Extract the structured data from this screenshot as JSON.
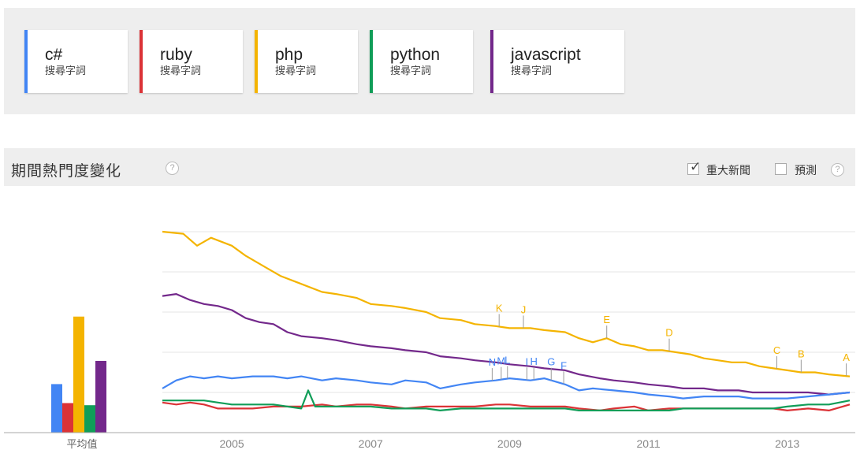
{
  "terms": [
    {
      "name": "c#",
      "type": "搜尋字詞",
      "color": "#4285f4"
    },
    {
      "name": "ruby",
      "type": "搜尋字詞",
      "color": "#db3236"
    },
    {
      "name": "php",
      "type": "搜尋字詞",
      "color": "#f4b400"
    },
    {
      "name": "python",
      "type": "搜尋字詞",
      "color": "#109d58"
    },
    {
      "name": "javascript",
      "type": "搜尋字詞",
      "color": "#73288b"
    }
  ],
  "section": {
    "title": "期間熱門度變化",
    "help": "?",
    "news_label": "重大新聞",
    "news_checked": true,
    "forecast_label": "預測",
    "forecast_checked": false
  },
  "chart_data": {
    "type": "line",
    "x_range": [
      2004.0,
      2013.9
    ],
    "ylim": [
      0,
      100
    ],
    "x_ticks": [
      "2005",
      "2007",
      "2009",
      "2011",
      "2013"
    ],
    "average_label": "平均值",
    "averages": [
      {
        "name": "c#",
        "value": 23
      },
      {
        "name": "ruby",
        "value": 14
      },
      {
        "name": "php",
        "value": 55
      },
      {
        "name": "python",
        "value": 13
      },
      {
        "name": "javascript",
        "value": 34
      }
    ],
    "series": [
      {
        "name": "php",
        "color": "#f4b400",
        "points": [
          [
            2004.0,
            100
          ],
          [
            2004.3,
            99
          ],
          [
            2004.5,
            93
          ],
          [
            2004.7,
            97
          ],
          [
            2005.0,
            93
          ],
          [
            2005.2,
            88
          ],
          [
            2005.5,
            82
          ],
          [
            2005.7,
            78
          ],
          [
            2006.0,
            74
          ],
          [
            2006.3,
            70
          ],
          [
            2006.5,
            69
          ],
          [
            2006.8,
            67
          ],
          [
            2007.0,
            64
          ],
          [
            2007.3,
            63
          ],
          [
            2007.5,
            62
          ],
          [
            2007.8,
            60
          ],
          [
            2008.0,
            57
          ],
          [
            2008.3,
            56
          ],
          [
            2008.5,
            54
          ],
          [
            2008.8,
            53
          ],
          [
            2009.0,
            52
          ],
          [
            2009.3,
            52
          ],
          [
            2009.5,
            51
          ],
          [
            2009.8,
            50
          ],
          [
            2010.0,
            47
          ],
          [
            2010.2,
            45
          ],
          [
            2010.4,
            47
          ],
          [
            2010.6,
            44
          ],
          [
            2010.8,
            43
          ],
          [
            2011.0,
            41
          ],
          [
            2011.2,
            41
          ],
          [
            2011.4,
            40
          ],
          [
            2011.6,
            39
          ],
          [
            2011.8,
            37
          ],
          [
            2012.0,
            36
          ],
          [
            2012.2,
            35
          ],
          [
            2012.4,
            35
          ],
          [
            2012.6,
            33
          ],
          [
            2012.8,
            32
          ],
          [
            2013.0,
            31
          ],
          [
            2013.2,
            30
          ],
          [
            2013.4,
            30
          ],
          [
            2013.6,
            29
          ],
          [
            2013.9,
            28
          ]
        ]
      },
      {
        "name": "javascript",
        "color": "#73288b",
        "points": [
          [
            2004.0,
            68
          ],
          [
            2004.2,
            69
          ],
          [
            2004.4,
            66
          ],
          [
            2004.6,
            64
          ],
          [
            2004.8,
            63
          ],
          [
            2005.0,
            61
          ],
          [
            2005.2,
            57
          ],
          [
            2005.4,
            55
          ],
          [
            2005.6,
            54
          ],
          [
            2005.8,
            50
          ],
          [
            2006.0,
            48
          ],
          [
            2006.3,
            47
          ],
          [
            2006.5,
            46
          ],
          [
            2006.8,
            44
          ],
          [
            2007.0,
            43
          ],
          [
            2007.3,
            42
          ],
          [
            2007.5,
            41
          ],
          [
            2007.8,
            40
          ],
          [
            2008.0,
            38
          ],
          [
            2008.3,
            37
          ],
          [
            2008.5,
            36
          ],
          [
            2008.8,
            35
          ],
          [
            2009.0,
            34
          ],
          [
            2009.3,
            33
          ],
          [
            2009.5,
            32
          ],
          [
            2009.8,
            31
          ],
          [
            2010.0,
            29
          ],
          [
            2010.3,
            27
          ],
          [
            2010.5,
            26
          ],
          [
            2010.8,
            25
          ],
          [
            2011.0,
            24
          ],
          [
            2011.3,
            23
          ],
          [
            2011.5,
            22
          ],
          [
            2011.8,
            22
          ],
          [
            2012.0,
            21
          ],
          [
            2012.3,
            21
          ],
          [
            2012.5,
            20
          ],
          [
            2012.8,
            20
          ],
          [
            2013.0,
            20
          ],
          [
            2013.3,
            20
          ],
          [
            2013.6,
            19
          ],
          [
            2013.9,
            20
          ]
        ]
      },
      {
        "name": "c#",
        "color": "#4285f4",
        "points": [
          [
            2004.0,
            22
          ],
          [
            2004.2,
            26
          ],
          [
            2004.4,
            28
          ],
          [
            2004.6,
            27
          ],
          [
            2004.8,
            28
          ],
          [
            2005.0,
            27
          ],
          [
            2005.3,
            28
          ],
          [
            2005.6,
            28
          ],
          [
            2005.8,
            27
          ],
          [
            2006.0,
            28
          ],
          [
            2006.3,
            26
          ],
          [
            2006.5,
            27
          ],
          [
            2006.8,
            26
          ],
          [
            2007.0,
            25
          ],
          [
            2007.3,
            24
          ],
          [
            2007.5,
            26
          ],
          [
            2007.8,
            25
          ],
          [
            2008.0,
            22
          ],
          [
            2008.3,
            24
          ],
          [
            2008.5,
            25
          ],
          [
            2008.8,
            26
          ],
          [
            2009.0,
            27
          ],
          [
            2009.3,
            26
          ],
          [
            2009.5,
            27
          ],
          [
            2009.8,
            24
          ],
          [
            2010.0,
            21
          ],
          [
            2010.2,
            22
          ],
          [
            2010.5,
            21
          ],
          [
            2010.8,
            20
          ],
          [
            2011.0,
            19
          ],
          [
            2011.3,
            18
          ],
          [
            2011.5,
            17
          ],
          [
            2011.8,
            18
          ],
          [
            2012.0,
            18
          ],
          [
            2012.3,
            18
          ],
          [
            2012.5,
            17
          ],
          [
            2012.8,
            17
          ],
          [
            2013.0,
            17
          ],
          [
            2013.3,
            18
          ],
          [
            2013.6,
            19
          ],
          [
            2013.9,
            20
          ]
        ]
      },
      {
        "name": "ruby",
        "color": "#db3236",
        "points": [
          [
            2004.0,
            15
          ],
          [
            2004.2,
            14
          ],
          [
            2004.4,
            15
          ],
          [
            2004.6,
            14
          ],
          [
            2004.8,
            12
          ],
          [
            2005.0,
            12
          ],
          [
            2005.3,
            12
          ],
          [
            2005.6,
            13
          ],
          [
            2005.8,
            13
          ],
          [
            2006.0,
            13
          ],
          [
            2006.3,
            14
          ],
          [
            2006.5,
            13
          ],
          [
            2006.8,
            14
          ],
          [
            2007.0,
            14
          ],
          [
            2007.3,
            13
          ],
          [
            2007.5,
            12
          ],
          [
            2007.8,
            13
          ],
          [
            2008.0,
            13
          ],
          [
            2008.3,
            13
          ],
          [
            2008.5,
            13
          ],
          [
            2008.8,
            14
          ],
          [
            2009.0,
            14
          ],
          [
            2009.3,
            13
          ],
          [
            2009.5,
            13
          ],
          [
            2009.8,
            13
          ],
          [
            2010.0,
            12
          ],
          [
            2010.3,
            11
          ],
          [
            2010.5,
            12
          ],
          [
            2010.8,
            13
          ],
          [
            2011.0,
            11
          ],
          [
            2011.3,
            12
          ],
          [
            2011.5,
            12
          ],
          [
            2011.8,
            12
          ],
          [
            2012.0,
            12
          ],
          [
            2012.3,
            12
          ],
          [
            2012.5,
            12
          ],
          [
            2012.8,
            12
          ],
          [
            2013.0,
            11
          ],
          [
            2013.3,
            12
          ],
          [
            2013.6,
            11
          ],
          [
            2013.9,
            14
          ]
        ]
      },
      {
        "name": "python",
        "color": "#109d58",
        "points": [
          [
            2004.0,
            16
          ],
          [
            2004.2,
            16
          ],
          [
            2004.4,
            16
          ],
          [
            2004.6,
            16
          ],
          [
            2004.8,
            15
          ],
          [
            2005.0,
            14
          ],
          [
            2005.3,
            14
          ],
          [
            2005.6,
            14
          ],
          [
            2005.8,
            13
          ],
          [
            2006.0,
            12
          ],
          [
            2006.1,
            21
          ],
          [
            2006.2,
            13
          ],
          [
            2006.5,
            13
          ],
          [
            2006.8,
            13
          ],
          [
            2007.0,
            13
          ],
          [
            2007.3,
            12
          ],
          [
            2007.5,
            12
          ],
          [
            2007.8,
            12
          ],
          [
            2008.0,
            11
          ],
          [
            2008.3,
            12
          ],
          [
            2008.5,
            12
          ],
          [
            2008.8,
            12
          ],
          [
            2009.0,
            12
          ],
          [
            2009.3,
            12
          ],
          [
            2009.5,
            12
          ],
          [
            2009.8,
            12
          ],
          [
            2010.0,
            11
          ],
          [
            2010.3,
            11
          ],
          [
            2010.5,
            11
          ],
          [
            2010.8,
            11
          ],
          [
            2011.0,
            11
          ],
          [
            2011.3,
            11
          ],
          [
            2011.5,
            12
          ],
          [
            2011.8,
            12
          ],
          [
            2012.0,
            12
          ],
          [
            2012.3,
            12
          ],
          [
            2012.5,
            12
          ],
          [
            2012.8,
            12
          ],
          [
            2013.0,
            13
          ],
          [
            2013.3,
            14
          ],
          [
            2013.6,
            14
          ],
          [
            2013.9,
            16
          ]
        ]
      }
    ],
    "news_markers": [
      {
        "label": "N",
        "x": 2008.75,
        "series": "c#"
      },
      {
        "label": "M",
        "x": 2008.88,
        "series": "c#"
      },
      {
        "label": "L",
        "x": 2008.97,
        "series": "c#"
      },
      {
        "label": "I",
        "x": 2009.25,
        "series": "c#"
      },
      {
        "label": "H",
        "x": 2009.35,
        "series": "c#"
      },
      {
        "label": "G",
        "x": 2009.6,
        "series": "c#"
      },
      {
        "label": "F",
        "x": 2009.78,
        "series": "c#"
      },
      {
        "label": "K",
        "x": 2008.85,
        "series": "php"
      },
      {
        "label": "J",
        "x": 2009.2,
        "series": "php"
      },
      {
        "label": "E",
        "x": 2010.4,
        "series": "php"
      },
      {
        "label": "D",
        "x": 2011.3,
        "series": "php"
      },
      {
        "label": "C",
        "x": 2012.85,
        "series": "php"
      },
      {
        "label": "B",
        "x": 2013.2,
        "series": "php"
      },
      {
        "label": "A",
        "x": 2013.85,
        "series": "php"
      }
    ]
  }
}
